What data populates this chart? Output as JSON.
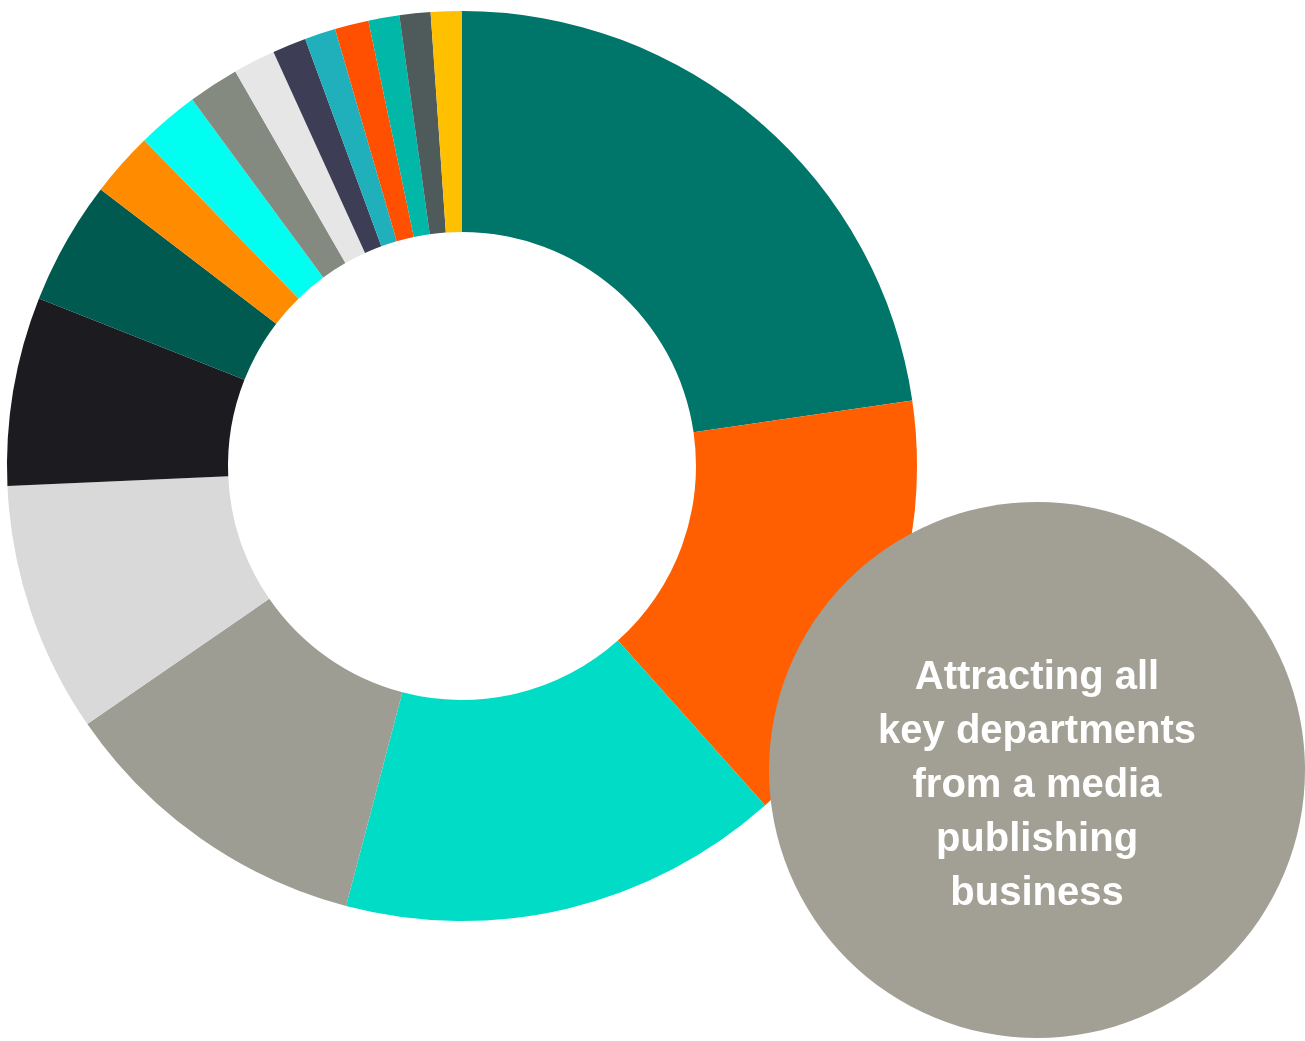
{
  "chart_data": {
    "type": "donut",
    "categories": [
      null,
      null,
      null,
      null,
      null,
      null,
      null,
      null,
      null,
      null,
      null,
      null,
      null,
      null,
      null,
      null,
      null
    ],
    "values": [
      22.7,
      15.7,
      15.7,
      11.3,
      8.9,
      6.7,
      4.4,
      2.3,
      2.2,
      1.8,
      1.5,
      1.2,
      1.1,
      1.2,
      1.1,
      1.1,
      1.1
    ],
    "colors": [
      "#00756a",
      "#ff5f00",
      "#00dcc5",
      "#9e9d94",
      "#d9d9d9",
      "#1c1b20",
      "#005a4f",
      "#ff8c00",
      "#00fff0",
      "#858a80",
      "#e6e6e6",
      "#3d3d55",
      "#1fb0bb",
      "#ff4f00",
      "#00b7a8",
      "#4f5a5a",
      "#ffc000"
    ],
    "annotations": [
      "Attracting all key departments from a media publishing business"
    ]
  }
}
